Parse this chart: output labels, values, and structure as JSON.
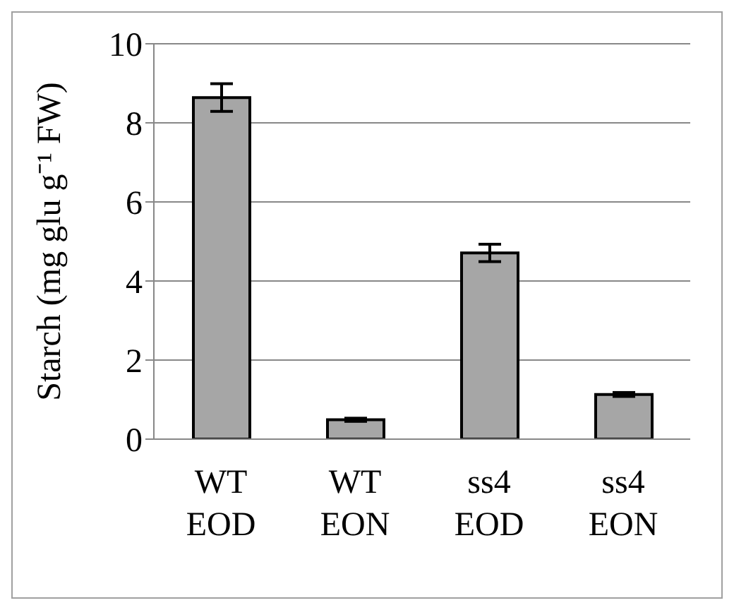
{
  "chart_data": {
    "type": "bar",
    "ylabel": "Starch (mg glu g⁻¹ FW)",
    "categories": [
      "WT EOD",
      "WT EON",
      "ss4 EOD",
      "ss4 EON"
    ],
    "values": [
      8.64,
      0.49,
      4.71,
      1.13
    ],
    "errors": [
      0.35,
      0.04,
      0.22,
      0.05
    ],
    "color": "#a6a6a6",
    "ylim": [
      0,
      10
    ],
    "yticks": [
      0,
      2,
      4,
      6,
      8,
      10
    ],
    "grid": "y"
  }
}
